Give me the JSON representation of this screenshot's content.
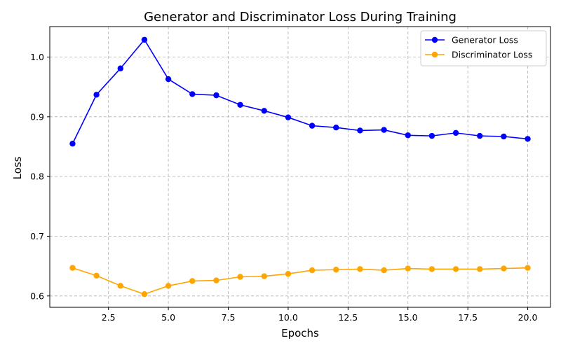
{
  "chart_data": {
    "type": "line",
    "title": "Generator and Discriminator Loss During Training",
    "xlabel": "Epochs",
    "ylabel": "Loss",
    "x": [
      1,
      2,
      3,
      4,
      5,
      6,
      7,
      8,
      9,
      10,
      11,
      12,
      13,
      14,
      15,
      16,
      17,
      18,
      19,
      20
    ],
    "xlim": [
      0.05,
      20.95
    ],
    "ylim": [
      0.581,
      1.051
    ],
    "xticks": [
      2.5,
      5.0,
      7.5,
      10.0,
      12.5,
      15.0,
      17.5,
      20.0
    ],
    "xtick_labels": [
      "2.5",
      "5.0",
      "7.5",
      "10.0",
      "12.5",
      "15.0",
      "17.5",
      "20.0"
    ],
    "yticks": [
      0.6,
      0.7,
      0.8,
      0.9,
      1.0
    ],
    "ytick_labels": [
      "0.6",
      "0.7",
      "0.8",
      "0.9",
      "1.0"
    ],
    "grid": true,
    "legend_position": "top-right",
    "series": [
      {
        "name": "Generator Loss",
        "color": "#0000ff",
        "marker": "circle",
        "values": [
          0.855,
          0.937,
          0.981,
          1.029,
          0.963,
          0.938,
          0.936,
          0.92,
          0.91,
          0.899,
          0.885,
          0.882,
          0.877,
          0.878,
          0.869,
          0.868,
          0.873,
          0.868,
          0.867,
          0.863
        ]
      },
      {
        "name": "Discriminator Loss",
        "color": "#ffa500",
        "marker": "circle",
        "values": [
          0.647,
          0.634,
          0.617,
          0.603,
          0.617,
          0.625,
          0.626,
          0.632,
          0.633,
          0.637,
          0.643,
          0.644,
          0.645,
          0.643,
          0.646,
          0.645,
          0.645,
          0.645,
          0.646,
          0.647
        ]
      }
    ]
  }
}
